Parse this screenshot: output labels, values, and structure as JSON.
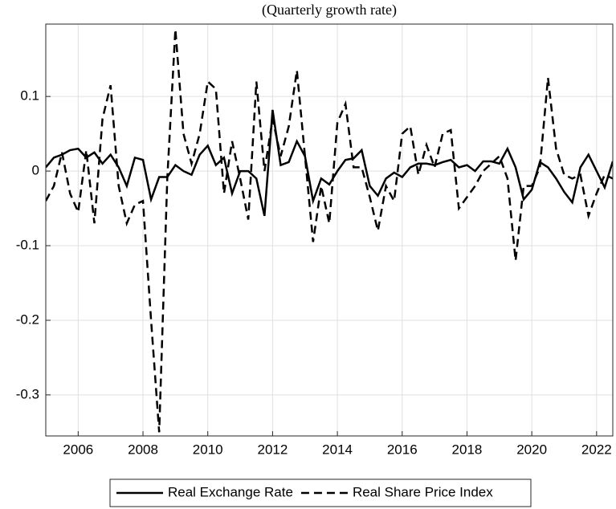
{
  "chart_data": {
    "type": "line",
    "title": "(Quarterly growth rate)",
    "x": [
      2005,
      2005.25,
      2005.5,
      2005.75,
      2006,
      2006.25,
      2006.5,
      2006.75,
      2007,
      2007.25,
      2007.5,
      2007.75,
      2008,
      2008.25,
      2008.5,
      2008.75,
      2009,
      2009.25,
      2009.5,
      2009.75,
      2010,
      2010.25,
      2010.5,
      2010.75,
      2011,
      2011.25,
      2011.5,
      2011.75,
      2012,
      2012.25,
      2012.5,
      2012.75,
      2013,
      2013.25,
      2013.5,
      2013.75,
      2014,
      2014.25,
      2014.5,
      2014.75,
      2015,
      2015.25,
      2015.5,
      2015.75,
      2016,
      2016.25,
      2016.5,
      2016.75,
      2017,
      2017.25,
      2017.5,
      2017.75,
      2018,
      2018.25,
      2018.5,
      2018.75,
      2019,
      2019.25,
      2019.5,
      2019.75,
      2020,
      2020.25,
      2020.5,
      2020.75,
      2021,
      2021.25,
      2021.5,
      2021.75,
      2022,
      2022.25,
      2022.5
    ],
    "series": [
      {
        "name": "Real Exchange Rate",
        "color": "#000000",
        "dash": false,
        "values": [
          0.005,
          0.018,
          0.022,
          0.028,
          0.03,
          0.018,
          0.025,
          0.01,
          0.022,
          0.005,
          -0.02,
          0.018,
          0.015,
          -0.038,
          -0.008,
          -0.008,
          0.008,
          0.0,
          -0.005,
          0.022,
          0.034,
          0.008,
          0.018,
          -0.03,
          0.0,
          0.0,
          -0.01,
          -0.06,
          0.082,
          0.008,
          0.012,
          0.04,
          0.02,
          -0.04,
          -0.01,
          -0.018,
          0.0,
          0.015,
          0.017,
          0.028,
          -0.02,
          -0.033,
          -0.01,
          -0.002,
          -0.008,
          0.005,
          0.01,
          0.01,
          0.008,
          0.012,
          0.015,
          0.005,
          0.008,
          0.0,
          0.013,
          0.013,
          0.01,
          0.03,
          0.005,
          -0.038,
          -0.025,
          0.012,
          0.005,
          -0.01,
          -0.028,
          -0.042,
          0.005,
          0.022,
          0.0,
          -0.022,
          0.013
        ]
      },
      {
        "name": "Real Share Price Index",
        "color": "#000000",
        "dash": true,
        "values": [
          -0.04,
          -0.02,
          0.025,
          -0.03,
          -0.055,
          0.028,
          -0.07,
          0.07,
          0.115,
          -0.02,
          -0.07,
          -0.045,
          -0.04,
          -0.2,
          -0.35,
          -0.01,
          0.19,
          0.05,
          0.01,
          0.05,
          0.12,
          0.11,
          -0.03,
          0.04,
          -0.01,
          -0.065,
          0.12,
          0.0,
          0.07,
          0.02,
          0.06,
          0.135,
          0.02,
          -0.095,
          -0.02,
          -0.07,
          0.065,
          0.09,
          0.005,
          0.005,
          -0.035,
          -0.08,
          -0.02,
          -0.04,
          0.05,
          0.06,
          -0.005,
          0.035,
          0.005,
          0.05,
          0.055,
          -0.05,
          -0.035,
          -0.02,
          0.0,
          0.01,
          0.02,
          -0.01,
          -0.12,
          -0.02,
          -0.02,
          0.005,
          0.125,
          0.03,
          -0.005,
          -0.01,
          -0.005,
          -0.06,
          -0.03,
          -0.005,
          -0.01
        ]
      }
    ],
    "xlim": [
      2005,
      2022.5
    ],
    "xticks": [
      2006,
      2008,
      2010,
      2012,
      2014,
      2016,
      2018,
      2020,
      2022
    ],
    "ylim": [
      -0.355,
      0.197
    ],
    "yticks": [
      -0.3,
      -0.2,
      -0.1,
      0,
      0.1
    ],
    "grid": true,
    "legend": "bottom"
  }
}
